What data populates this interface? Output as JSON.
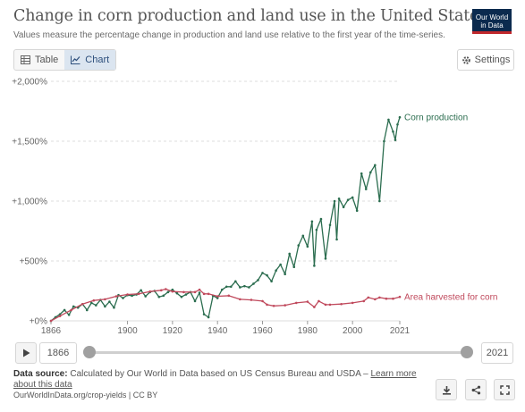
{
  "header": {
    "title": "Change in corn production and land use in the United States",
    "subtitle": "Values measure the percentage change in production and land use relative to the first year of the time-series.",
    "logo_line1": "Our World",
    "logo_line2": "in Data"
  },
  "tabs": [
    {
      "label": "Table",
      "icon": "table-icon",
      "active": false
    },
    {
      "label": "Chart",
      "icon": "line-chart-icon",
      "active": true
    }
  ],
  "settings_label": "Settings",
  "timeline": {
    "start_year": "1866",
    "end_year": "2021"
  },
  "source": {
    "label": "Data source:",
    "text": "Calculated by Our World in Data based on US Census Bureau and USDA –",
    "link": "Learn more about this data"
  },
  "footer": "OurWorldInData.org/crop-yields | CC BY",
  "colors": {
    "corn": "#2b6d4f",
    "area": "#c0495c",
    "grid": "#dddddd"
  },
  "chart_data": {
    "type": "line",
    "title": "Change in corn production and land use in the United States",
    "y_ticks": [
      "+2,000%",
      "+1,500%",
      "+1,000%",
      "+500%",
      "+0%"
    ],
    "x_ticks": [
      "1866",
      "1900",
      "1920",
      "1940",
      "1960",
      "1980",
      "2000",
      "2021"
    ],
    "x_range": [
      1866,
      2021
    ],
    "y_range": [
      0,
      2000
    ],
    "grid": "horizontal",
    "series": [
      {
        "name": "Corn production",
        "color": "#2b6d4f",
        "points": [
          [
            1866,
            0
          ],
          [
            1868,
            30
          ],
          [
            1870,
            55
          ],
          [
            1872,
            90
          ],
          [
            1874,
            50
          ],
          [
            1876,
            120
          ],
          [
            1878,
            110
          ],
          [
            1880,
            140
          ],
          [
            1882,
            90
          ],
          [
            1884,
            150
          ],
          [
            1886,
            130
          ],
          [
            1888,
            175
          ],
          [
            1890,
            120
          ],
          [
            1892,
            160
          ],
          [
            1894,
            110
          ],
          [
            1896,
            215
          ],
          [
            1898,
            190
          ],
          [
            1900,
            215
          ],
          [
            1902,
            210
          ],
          [
            1904,
            220
          ],
          [
            1906,
            255
          ],
          [
            1908,
            205
          ],
          [
            1910,
            240
          ],
          [
            1912,
            250
          ],
          [
            1914,
            200
          ],
          [
            1916,
            210
          ],
          [
            1918,
            240
          ],
          [
            1920,
            260
          ],
          [
            1922,
            230
          ],
          [
            1924,
            200
          ],
          [
            1926,
            220
          ],
          [
            1928,
            240
          ],
          [
            1930,
            165
          ],
          [
            1932,
            235
          ],
          [
            1934,
            55
          ],
          [
            1936,
            30
          ],
          [
            1938,
            210
          ],
          [
            1940,
            190
          ],
          [
            1942,
            260
          ],
          [
            1944,
            285
          ],
          [
            1946,
            285
          ],
          [
            1948,
            330
          ],
          [
            1950,
            280
          ],
          [
            1952,
            290
          ],
          [
            1954,
            280
          ],
          [
            1956,
            310
          ],
          [
            1958,
            340
          ],
          [
            1960,
            400
          ],
          [
            1962,
            380
          ],
          [
            1964,
            330
          ],
          [
            1966,
            420
          ],
          [
            1968,
            470
          ],
          [
            1970,
            390
          ],
          [
            1972,
            560
          ],
          [
            1974,
            450
          ],
          [
            1976,
            630
          ],
          [
            1978,
            710
          ],
          [
            1980,
            620
          ],
          [
            1982,
            830
          ],
          [
            1983,
            460
          ],
          [
            1984,
            760
          ],
          [
            1986,
            850
          ],
          [
            1988,
            520
          ],
          [
            1990,
            800
          ],
          [
            1992,
            1000
          ],
          [
            1993,
            680
          ],
          [
            1994,
            1020
          ],
          [
            1996,
            950
          ],
          [
            1998,
            1010
          ],
          [
            2000,
            1030
          ],
          [
            2002,
            920
          ],
          [
            2004,
            1230
          ],
          [
            2006,
            1100
          ],
          [
            2008,
            1240
          ],
          [
            2010,
            1300
          ],
          [
            2012,
            1000
          ],
          [
            2014,
            1500
          ],
          [
            2016,
            1680
          ],
          [
            2018,
            1580
          ],
          [
            2019,
            1510
          ],
          [
            2020,
            1640
          ],
          [
            2021,
            1700
          ]
        ]
      },
      {
        "name": "Area harvested for corn",
        "color": "#c0495c",
        "points": [
          [
            1866,
            0
          ],
          [
            1870,
            40
          ],
          [
            1875,
            90
          ],
          [
            1880,
            140
          ],
          [
            1885,
            170
          ],
          [
            1890,
            180
          ],
          [
            1895,
            205
          ],
          [
            1900,
            220
          ],
          [
            1905,
            225
          ],
          [
            1910,
            245
          ],
          [
            1915,
            255
          ],
          [
            1917,
            265
          ],
          [
            1920,
            245
          ],
          [
            1925,
            240
          ],
          [
            1930,
            240
          ],
          [
            1932,
            260
          ],
          [
            1934,
            225
          ],
          [
            1936,
            225
          ],
          [
            1940,
            205
          ],
          [
            1945,
            210
          ],
          [
            1950,
            180
          ],
          [
            1955,
            175
          ],
          [
            1960,
            165
          ],
          [
            1962,
            135
          ],
          [
            1965,
            125
          ],
          [
            1970,
            130
          ],
          [
            1975,
            150
          ],
          [
            1980,
            160
          ],
          [
            1983,
            115
          ],
          [
            1985,
            165
          ],
          [
            1988,
            135
          ],
          [
            1990,
            135
          ],
          [
            1995,
            140
          ],
          [
            2000,
            150
          ],
          [
            2005,
            165
          ],
          [
            2007,
            195
          ],
          [
            2010,
            180
          ],
          [
            2012,
            195
          ],
          [
            2015,
            185
          ],
          [
            2018,
            185
          ],
          [
            2021,
            200
          ]
        ]
      }
    ]
  }
}
